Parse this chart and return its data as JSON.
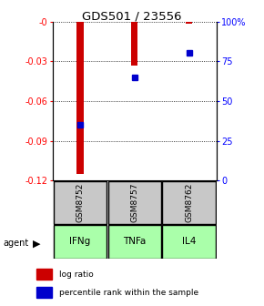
{
  "title": "GDS501 / 23556",
  "samples": [
    "GSM8752",
    "GSM8757",
    "GSM8762"
  ],
  "agents": [
    "IFNg",
    "TNFa",
    "IL4"
  ],
  "log_ratios": [
    -0.115,
    -0.033,
    -0.002
  ],
  "percentile_ranks": [
    35,
    65,
    80
  ],
  "bar_color": "#cc0000",
  "pct_color": "#0000cc",
  "ylim_left": [
    -0.12,
    0.0
  ],
  "ylim_right": [
    0,
    100
  ],
  "yticks_left": [
    -0.12,
    -0.09,
    -0.06,
    -0.03,
    0.0
  ],
  "ytick_labels_left": [
    "-0.12",
    "-0.09",
    "-0.06",
    "-0.03",
    "-0"
  ],
  "yticks_right": [
    0,
    25,
    50,
    75,
    100
  ],
  "ytick_labels_right": [
    "0",
    "25",
    "50",
    "75",
    "100%"
  ],
  "sample_box_color": "#c8c8c8",
  "agent_box_color": "#aaffaa",
  "bar_width": 0.12
}
